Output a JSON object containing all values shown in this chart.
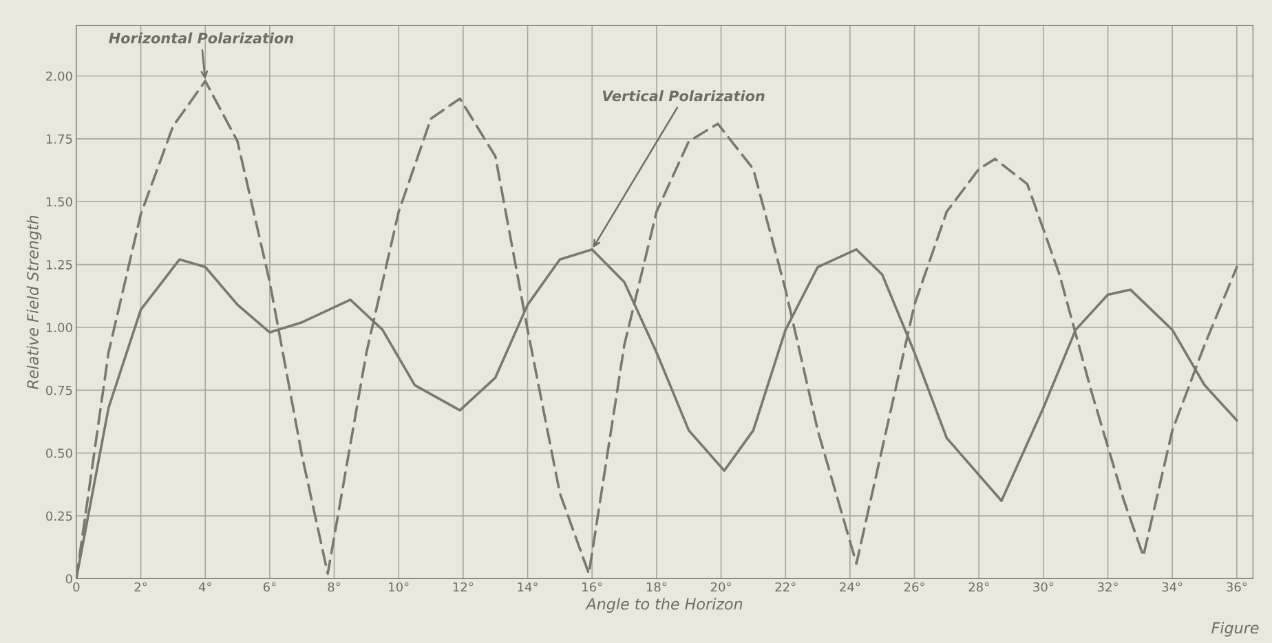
{
  "chart_data": {
    "type": "line",
    "xlabel": "Angle to the Horizon",
    "ylabel": "Relative Field Strength",
    "xlim": [
      0,
      36.5
    ],
    "ylim": [
      0,
      2.2
    ],
    "xticks": [
      {
        "value": 0,
        "label": "0"
      },
      {
        "value": 2,
        "label": "2°"
      },
      {
        "value": 4,
        "label": "4°"
      },
      {
        "value": 6,
        "label": "6°"
      },
      {
        "value": 8,
        "label": "8°"
      },
      {
        "value": 10,
        "label": "10°"
      },
      {
        "value": 12,
        "label": "12°"
      },
      {
        "value": 14,
        "label": "14°"
      },
      {
        "value": 16,
        "label": "16°"
      },
      {
        "value": 18,
        "label": "18°"
      },
      {
        "value": 20,
        "label": "20°"
      },
      {
        "value": 22,
        "label": "22°"
      },
      {
        "value": 24,
        "label": "24°"
      },
      {
        "value": 26,
        "label": "26°"
      },
      {
        "value": 28,
        "label": "28°"
      },
      {
        "value": 30,
        "label": "30°"
      },
      {
        "value": 32,
        "label": "32°"
      },
      {
        "value": 34,
        "label": "34°"
      },
      {
        "value": 36,
        "label": "36°"
      }
    ],
    "yticks": [
      0,
      {
        "value": 0.25,
        "label": "0.25"
      },
      {
        "value": 0.5,
        "label": "0.50"
      },
      {
        "value": 0.75,
        "label": "0.75"
      },
      {
        "value": 1,
        "label": "1.00"
      },
      {
        "value": 1.25,
        "label": "1.25"
      },
      {
        "value": 1.5,
        "label": "1.50"
      },
      {
        "value": 1.75,
        "label": "1.75"
      },
      {
        "value": 2,
        "label": "2.00"
      }
    ],
    "grid": true,
    "legend": false,
    "marker": "none",
    "series": [
      {
        "color": "#7a7a6c",
        "line_style": "dashed",
        "x": [
          0,
          1,
          2,
          3,
          4,
          5,
          6,
          7,
          7.8,
          9,
          10,
          11,
          11.9,
          13,
          14,
          15,
          15.9,
          17,
          18,
          19,
          19.9,
          21,
          22,
          23,
          24.2,
          26,
          27,
          28,
          28.5,
          29.5,
          30.5,
          31.5,
          32.5,
          33.1,
          34,
          35,
          36
        ],
        "values": [
          0,
          0.9,
          1.45,
          1.8,
          1.98,
          1.74,
          1.18,
          0.49,
          0.02,
          0.9,
          1.46,
          1.83,
          1.91,
          1.68,
          0.99,
          0.34,
          0.02,
          0.93,
          1.46,
          1.74,
          1.81,
          1.63,
          1.15,
          0.59,
          0.06,
          1.09,
          1.46,
          1.63,
          1.67,
          1.57,
          1.21,
          0.74,
          0.31,
          0.09,
          0.59,
          0.93,
          1.24
        ]
      },
      {
        "color": "#7a7a6c",
        "line_style": "solid",
        "x": [
          0,
          1,
          2,
          3.2,
          4,
          5,
          6,
          7,
          8.5,
          9.5,
          10.5,
          11.9,
          13,
          14,
          15,
          16,
          17,
          18,
          19,
          20.1,
          21,
          22,
          23,
          24.2,
          25,
          26,
          27,
          28.7,
          30,
          31,
          32,
          32.7,
          34,
          35,
          36
        ],
        "values": [
          0,
          0.68,
          1.07,
          1.27,
          1.24,
          1.09,
          0.98,
          1.02,
          1.11,
          0.99,
          0.77,
          0.67,
          0.8,
          1.09,
          1.27,
          1.31,
          1.18,
          0.9,
          0.59,
          0.43,
          0.59,
          0.99,
          1.24,
          1.31,
          1.21,
          0.9,
          0.56,
          0.31,
          0.68,
          0.99,
          1.13,
          1.15,
          0.99,
          0.77,
          0.63
        ]
      }
    ],
    "annotations": [
      {
        "text": "Horizontal Polarization",
        "x": 4,
        "y": 1.98
      },
      {
        "text": "Vertical Polarization",
        "x": 16,
        "y": 1.31
      },
      "Figure"
    ]
  }
}
